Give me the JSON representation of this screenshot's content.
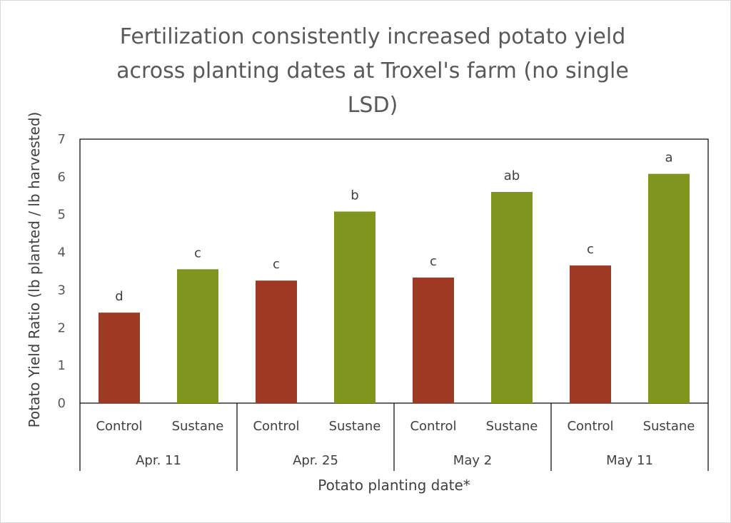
{
  "chart_data": {
    "type": "bar",
    "title": "Fertilization consistently increased potato yield\nacross planting dates at Troxel's farm (no single\nLSD)",
    "xlabel": "Potato planting date*",
    "ylabel": "Potato Yield Ratio (lb planted / lb harvested)",
    "ylim": [
      0,
      7
    ],
    "yticks": [
      0,
      1,
      2,
      3,
      4,
      5,
      6,
      7
    ],
    "grid": false,
    "groups": [
      "Apr. 11",
      "Apr. 25",
      "May 2",
      "May 11"
    ],
    "categories": [
      "Control",
      "Sustane"
    ],
    "bars": [
      {
        "group": "Apr. 11",
        "category": "Control",
        "value": 2.4,
        "label": "d"
      },
      {
        "group": "Apr. 11",
        "category": "Sustane",
        "value": 3.55,
        "label": "c"
      },
      {
        "group": "Apr. 25",
        "category": "Control",
        "value": 3.25,
        "label": "c"
      },
      {
        "group": "Apr. 25",
        "category": "Sustane",
        "value": 5.08,
        "label": "b"
      },
      {
        "group": "May 2",
        "category": "Control",
        "value": 3.33,
        "label": "c"
      },
      {
        "group": "May 2",
        "category": "Sustane",
        "value": 5.6,
        "label": "ab"
      },
      {
        "group": "May 11",
        "category": "Control",
        "value": 3.65,
        "label": "c"
      },
      {
        "group": "May 11",
        "category": "Sustane",
        "value": 6.08,
        "label": "a"
      }
    ],
    "colors": {
      "Control": "#9e3a23",
      "Sustane": "#7f9520"
    }
  }
}
